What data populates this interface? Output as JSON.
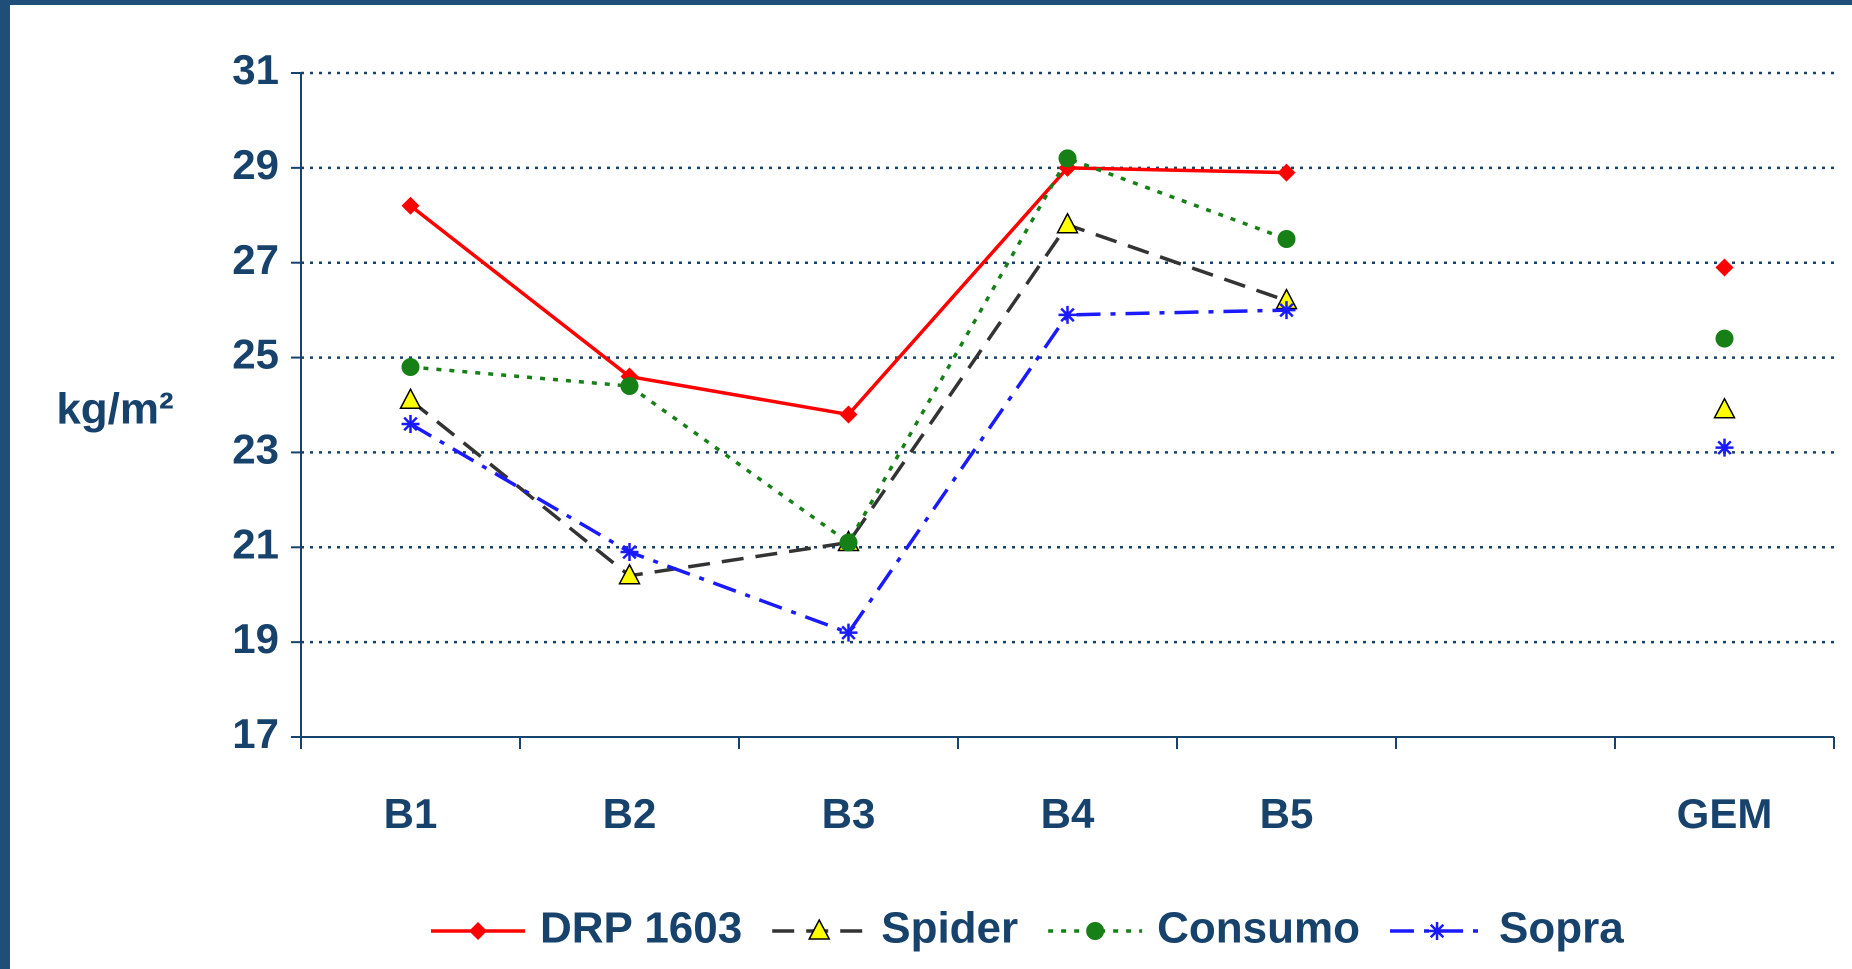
{
  "chart_data": {
    "type": "line",
    "y_label": "kg/m²",
    "categories": [
      "B1",
      "B2",
      "B3",
      "B4",
      "B5",
      null,
      "GEM"
    ],
    "series": [
      {
        "name": "DRP 1603",
        "color": "#ff0000",
        "marker": "diamond",
        "dash": "solid",
        "values": [
          28.2,
          24.6,
          23.8,
          29.0,
          28.9,
          null,
          26.9
        ]
      },
      {
        "name": "Spider",
        "color": "#333333",
        "marker": "triangle",
        "dash": "dashed",
        "values": [
          24.1,
          20.4,
          21.1,
          27.8,
          26.2,
          null,
          23.9
        ]
      },
      {
        "name": "Consumo",
        "color": "#168016",
        "marker": "circle",
        "dash": "dotted",
        "values": [
          24.8,
          24.4,
          21.1,
          29.2,
          27.5,
          null,
          25.4
        ]
      },
      {
        "name": "Sopra",
        "color": "#1a1aff",
        "marker": "asterisk",
        "dash": "dashdot",
        "values": [
          23.6,
          20.9,
          19.2,
          25.9,
          26.0,
          null,
          23.1
        ]
      }
    ],
    "ylim": [
      17,
      31
    ],
    "yticks": [
      17,
      19,
      21,
      23,
      25,
      27,
      29,
      31
    ],
    "grid": true,
    "legend": "bottom"
  }
}
